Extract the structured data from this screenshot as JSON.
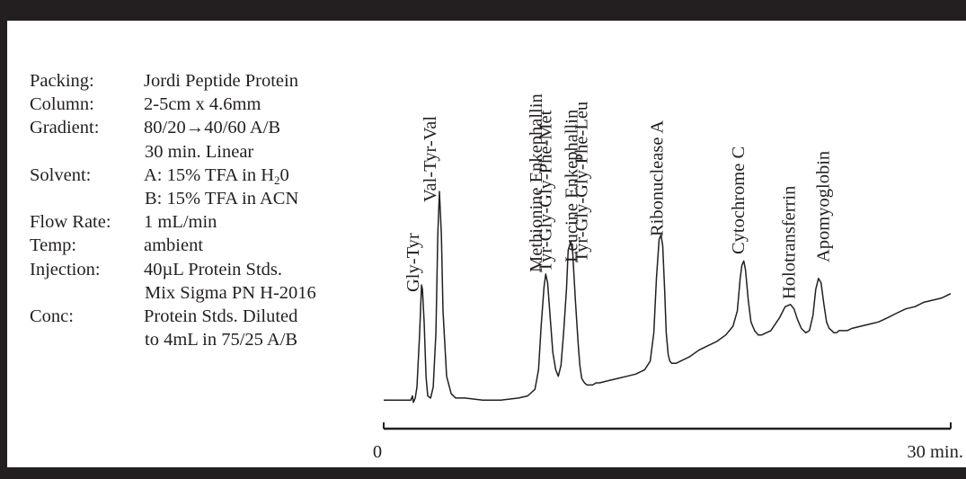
{
  "parameters": [
    {
      "label": "Packing:",
      "value": "Jordi Peptide Protein"
    },
    {
      "label": "Column:",
      "value": "2-5cm x 4.6mm"
    },
    {
      "label": "Gradient:",
      "value": "80/20→40/60 A/B"
    },
    {
      "label": "",
      "value": "30 min. Linear"
    },
    {
      "label": "Solvent:",
      "value_pre": "A: 15% TFA in H",
      "value_sub": "2",
      "value_post": "0"
    },
    {
      "label": "",
      "value": "B: 15% TFA in ACN"
    },
    {
      "label": "Flow Rate:",
      "value": "1 mL/min"
    },
    {
      "label": "Temp:",
      "value": "ambient"
    },
    {
      "label": "Injection:",
      "value": "40µL Protein Stds."
    },
    {
      "label": "",
      "value": "Mix Sigma PN H-2016"
    },
    {
      "label": "Conc:",
      "value": "Protein Stds. Diluted"
    },
    {
      "label": "",
      "value": "to 4mL in 75/25 A/B"
    }
  ],
  "chart_data": {
    "type": "line",
    "xlabel": "",
    "ylabel": "",
    "xlim": [
      0,
      30
    ],
    "x_tick_labels": [
      "0",
      "30 min."
    ],
    "grid": false,
    "legend": "none",
    "line_color": "#231f20",
    "peaks": [
      {
        "label": "Gly-Tyr",
        "time_min": 2.0
      },
      {
        "label": "Val-Tyr-Val",
        "time_min": 2.9
      },
      {
        "label": "Methionine Enkephallin",
        "time_min": 8.5
      },
      {
        "label": "Tyr-Gly-Gly-Phe-Met",
        "time_min": 9.0
      },
      {
        "label": "Leucine Enkephallin",
        "time_min": 10.4
      },
      {
        "label": "Tyr-Gly-Gly-Phe-Leu",
        "time_min": 10.9
      },
      {
        "label": "Ribonuclease A",
        "time_min": 14.9
      },
      {
        "label": "Cytochrome C",
        "time_min": 19.2
      },
      {
        "label": "Holotransferrin",
        "time_min": 21.9
      },
      {
        "label": "Apomyoglobin",
        "time_min": 23.7
      }
    ],
    "trace": {
      "time_min": [
        0,
        1.43,
        1.52,
        1.57,
        1.67,
        1.76,
        1.9,
        2.0,
        2.05,
        2.14,
        2.24,
        2.33,
        2.48,
        2.62,
        2.76,
        2.86,
        2.95,
        3.05,
        3.14,
        3.33,
        3.57,
        3.81,
        4.29,
        5.24,
        6.19,
        7.14,
        7.62,
        8.0,
        8.19,
        8.33,
        8.48,
        8.57,
        8.67,
        8.81,
        8.95,
        9.1,
        9.24,
        9.38,
        9.52,
        9.67,
        9.76,
        9.9,
        10.0,
        10.14,
        10.29,
        10.38,
        10.48,
        10.62,
        10.76,
        10.9,
        11.05,
        11.24,
        11.43,
        11.9,
        12.38,
        12.86,
        13.33,
        13.81,
        14.1,
        14.29,
        14.43,
        14.57,
        14.67,
        14.76,
        14.86,
        14.95,
        15.05,
        15.14,
        15.24,
        15.33,
        15.48,
        15.71,
        16.19,
        16.67,
        17.14,
        17.62,
        18.1,
        18.48,
        18.71,
        18.86,
        18.95,
        19.05,
        19.14,
        19.29,
        19.43,
        19.62,
        19.81,
        20.0,
        20.48,
        20.95,
        21.24,
        21.52,
        21.71,
        21.9,
        22.1,
        22.33,
        22.52,
        22.71,
        22.86,
        23.0,
        23.14,
        23.29,
        23.43,
        23.57,
        23.71,
        23.81,
        23.95,
        24.1,
        24.29,
        24.52,
        24.76,
        25.24,
        25.71,
        26.19,
        26.67,
        27.14,
        27.62,
        28.1,
        28.57,
        29.05,
        29.52,
        29.76,
        30.0
      ],
      "signal": [
        0.04,
        0.04,
        0.06,
        0.03,
        0.05,
        0.1,
        0.35,
        0.57,
        0.55,
        0.4,
        0.15,
        0.06,
        0.05,
        0.1,
        0.35,
        0.8,
        1.0,
        0.8,
        0.45,
        0.15,
        0.07,
        0.05,
        0.05,
        0.04,
        0.04,
        0.05,
        0.06,
        0.09,
        0.18,
        0.38,
        0.56,
        0.62,
        0.58,
        0.42,
        0.26,
        0.18,
        0.15,
        0.2,
        0.35,
        0.55,
        0.73,
        0.77,
        0.72,
        0.5,
        0.3,
        0.2,
        0.14,
        0.12,
        0.11,
        0.11,
        0.11,
        0.12,
        0.12,
        0.13,
        0.14,
        0.15,
        0.16,
        0.18,
        0.22,
        0.35,
        0.6,
        0.78,
        0.8,
        0.75,
        0.55,
        0.35,
        0.25,
        0.22,
        0.21,
        0.21,
        0.21,
        0.22,
        0.24,
        0.27,
        0.29,
        0.31,
        0.34,
        0.38,
        0.45,
        0.6,
        0.66,
        0.68,
        0.64,
        0.5,
        0.4,
        0.36,
        0.34,
        0.34,
        0.36,
        0.42,
        0.47,
        0.48,
        0.46,
        0.41,
        0.37,
        0.35,
        0.36,
        0.43,
        0.55,
        0.6,
        0.58,
        0.48,
        0.4,
        0.37,
        0.36,
        0.35,
        0.35,
        0.36,
        0.36,
        0.36,
        0.37,
        0.38,
        0.39,
        0.4,
        0.42,
        0.44,
        0.46,
        0.47,
        0.49,
        0.5,
        0.51,
        0.52,
        0.53
      ]
    }
  }
}
